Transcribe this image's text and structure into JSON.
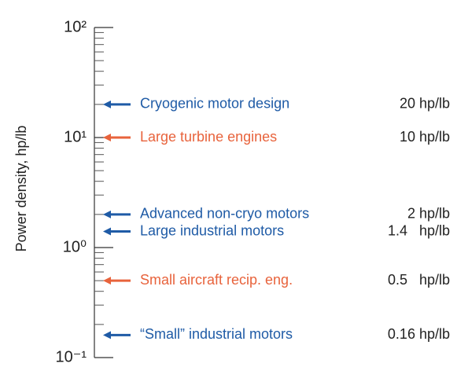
{
  "chart_data": {
    "type": "arrow-scale",
    "y_label": "Power density, hp/lb",
    "log_scale": true,
    "ylim": [
      0.1,
      100
    ],
    "yticks": [
      {
        "value": 100,
        "label": "10²"
      },
      {
        "value": 10,
        "label": "10¹"
      },
      {
        "value": 1,
        "label": "10⁰"
      },
      {
        "value": 0.1,
        "label": "10⁻¹"
      }
    ],
    "minor_yticks": [
      0.2,
      0.3,
      0.4,
      0.5,
      0.6,
      0.7,
      0.8,
      0.9,
      2,
      3,
      4,
      5,
      6,
      7,
      8,
      9,
      20,
      30,
      40,
      50,
      60,
      70,
      80,
      90
    ],
    "categories": [
      "Cryogenic motor design",
      "Large turbine engines",
      "Advanced non-cryo motors",
      "Large industrial motors",
      "Small aircraft recip. eng.",
      "“Small” industrial motors"
    ],
    "values": [
      20,
      10,
      2,
      1.4,
      0.5,
      0.16
    ],
    "value_labels": [
      "20 hp/lb",
      "10 hp/lb",
      "2 hp/lb",
      "1.4   hp/lb",
      "0.5   hp/lb",
      "0.16 hp/lb"
    ],
    "colors": [
      "#1f5ba6",
      "#e8633c",
      "#1f5ba6",
      "#1f5ba6",
      "#e8633c",
      "#1f5ba6"
    ]
  }
}
